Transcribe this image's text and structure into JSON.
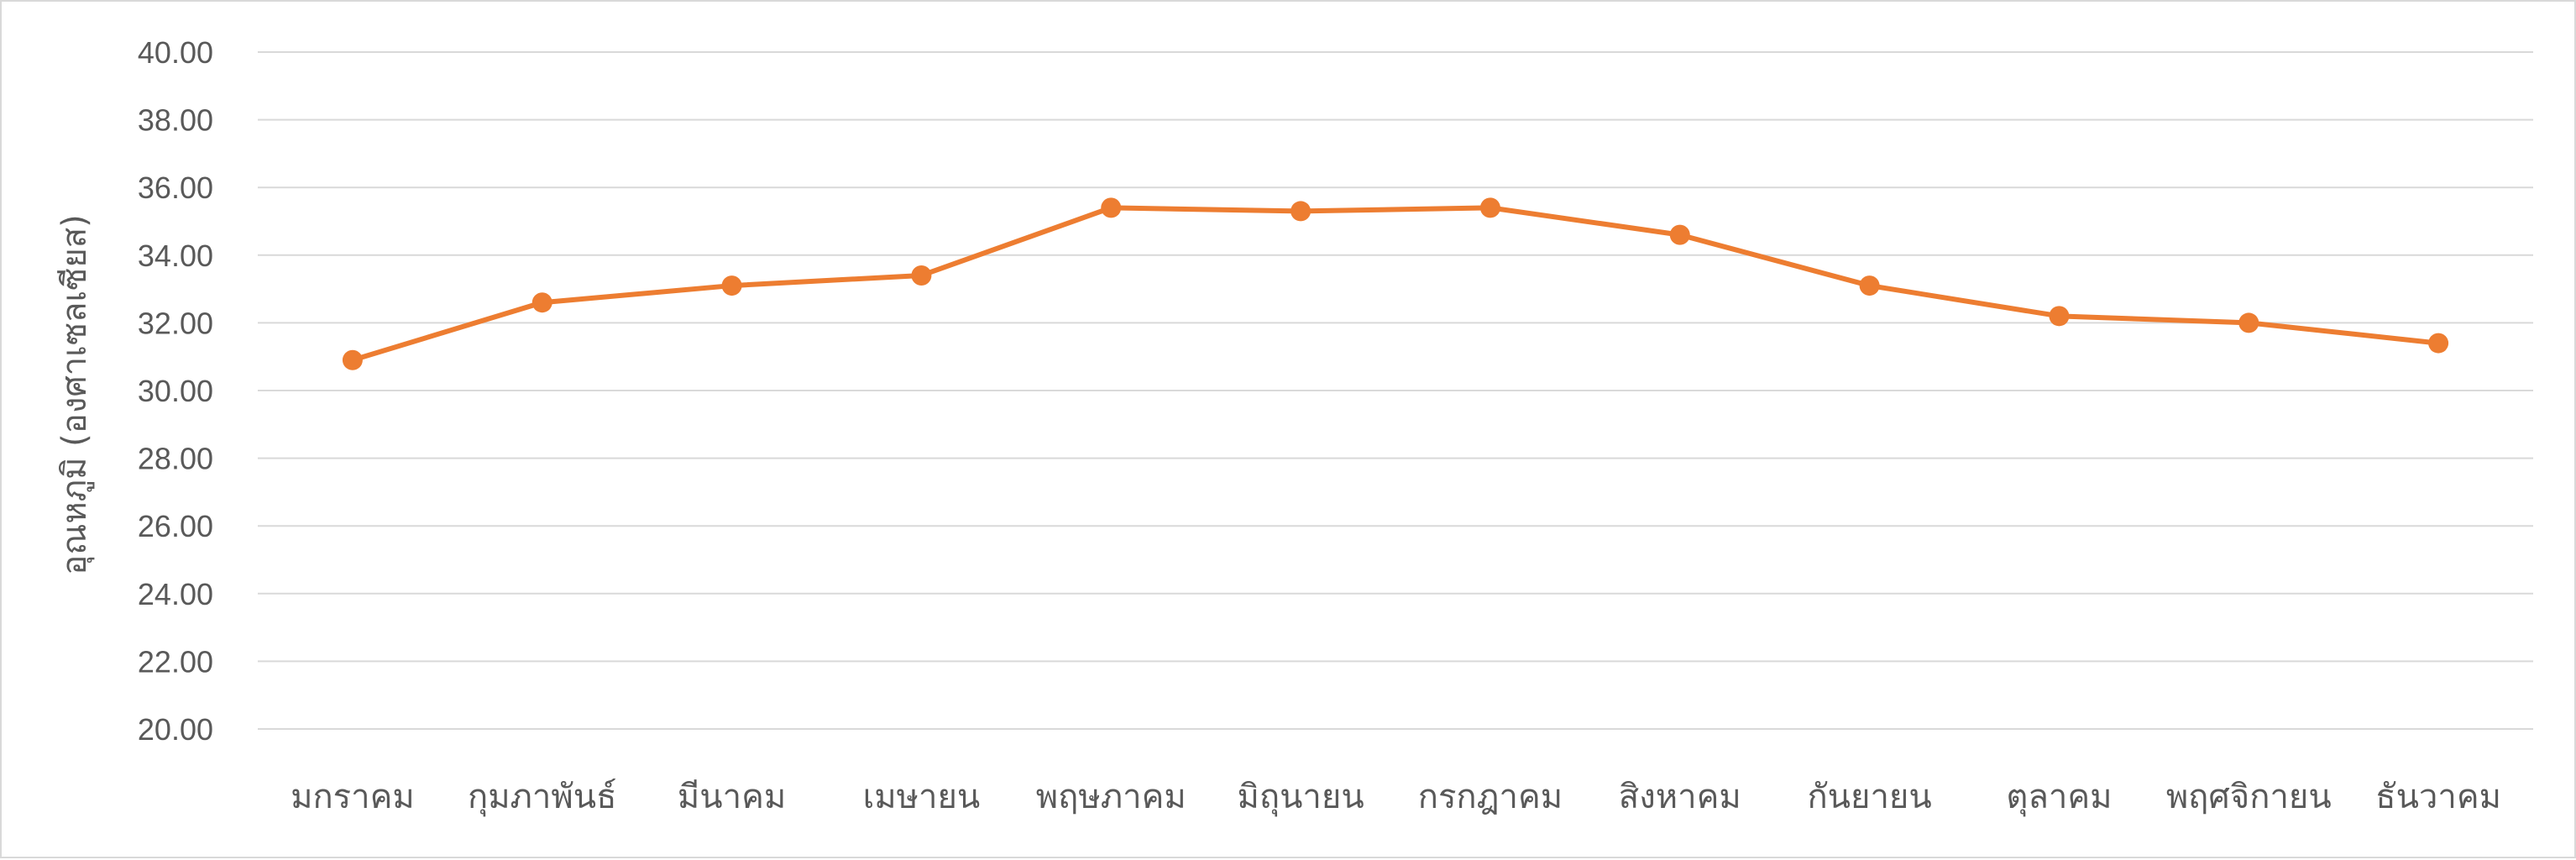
{
  "chart_data": {
    "type": "line",
    "title": "",
    "xlabel": "",
    "ylabel": "อุณหภูมิ (องศาเซลเซียส)",
    "ylim": [
      20,
      40
    ],
    "yticks": [
      "20.00",
      "22.00",
      "24.00",
      "26.00",
      "28.00",
      "30.00",
      "32.00",
      "34.00",
      "36.00",
      "38.00",
      "40.00"
    ],
    "grid": true,
    "legend": "none",
    "categories": [
      "มกราคม",
      "กุมภาพันธ์",
      "มีนาคม",
      "เมษายน",
      "พฤษภาคม",
      "มิถุนายน",
      "กรกฎาคม",
      "สิงหาคม",
      "กันยายน",
      "ตุลาคม",
      "พฤศจิกายน",
      "ธันวาคม"
    ],
    "series": [
      {
        "color": "#ed7d31",
        "values": [
          30.9,
          32.6,
          33.1,
          33.4,
          35.4,
          35.3,
          35.4,
          34.6,
          33.1,
          32.2,
          32.0,
          31.4
        ]
      }
    ]
  }
}
